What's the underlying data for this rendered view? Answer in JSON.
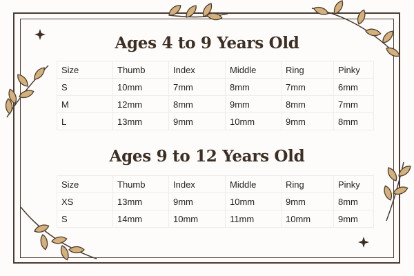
{
  "sections": [
    {
      "title": "Ages 4 to 9 Years Old",
      "headers": [
        "Size",
        "Thumb",
        "Index",
        "Middle",
        "Ring",
        "Pinky"
      ],
      "rows": [
        [
          "S",
          "10mm",
          "7mm",
          "8mm",
          "7mm",
          "6mm"
        ],
        [
          "M",
          "12mm",
          "8mm",
          "9mm",
          "8mm",
          "7mm"
        ],
        [
          "L",
          "13mm",
          "9mm",
          "10mm",
          "9mm",
          "8mm"
        ]
      ]
    },
    {
      "title": "Ages 9 to 12 Years Old",
      "headers": [
        "Size",
        "Thumb",
        "Index",
        "Middle",
        "Ring",
        "Pinky"
      ],
      "rows": [
        [
          "XS",
          "13mm",
          "9mm",
          "10mm",
          "9mm",
          "8mm"
        ],
        [
          "S",
          "14mm",
          "10mm",
          "11mm",
          "10mm",
          "9mm"
        ]
      ]
    }
  ],
  "colors": {
    "frame": "#4a3a30",
    "leaf": "#d4b07a",
    "title": "#3d2e24"
  },
  "icons": [
    "leaf-branch-icon",
    "sparkle-icon"
  ]
}
